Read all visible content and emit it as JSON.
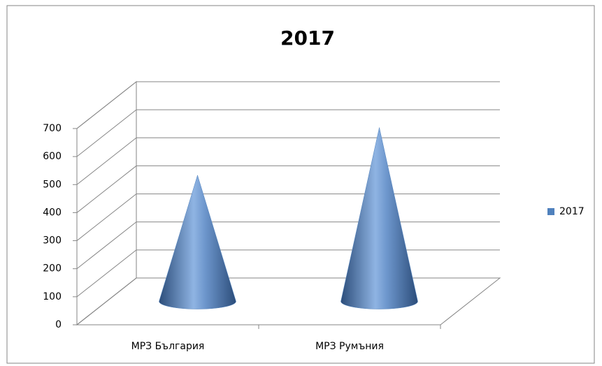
{
  "chart_data": {
    "type": "cone",
    "title": "2017",
    "categories": [
      "МРЗ България",
      "МРЗ Румъния"
    ],
    "series": [
      {
        "name": "2017",
        "color": "#4f81bd",
        "values": [
          450,
          620
        ]
      }
    ],
    "ylim": [
      0,
      700
    ],
    "yticks": [
      0,
      100,
      200,
      300,
      400,
      500,
      600,
      700
    ],
    "grid": true,
    "legend": "right"
  }
}
